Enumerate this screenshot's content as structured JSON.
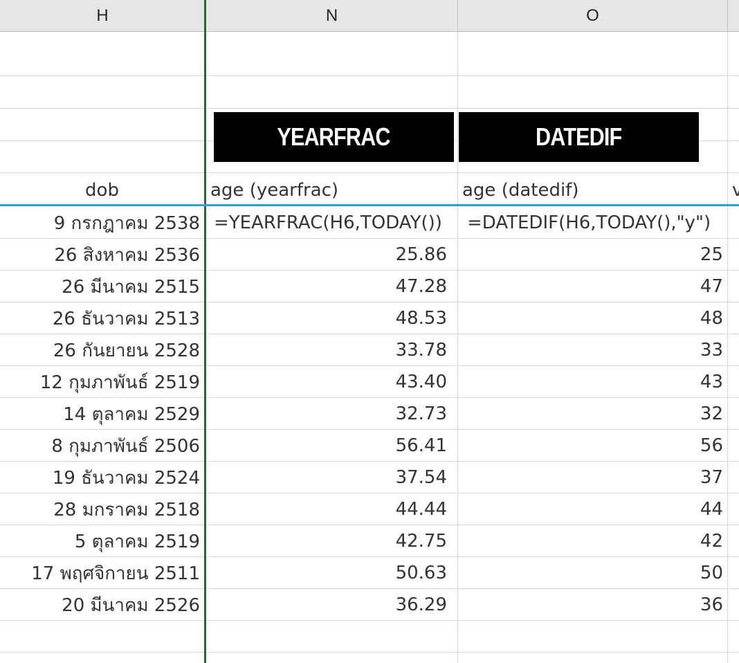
{
  "columns": {
    "h": "H",
    "n": "N",
    "o": "O"
  },
  "banners": {
    "yearfrac": "YEARFRAC",
    "datedif": "DATEDIF"
  },
  "headers": {
    "dob": "dob",
    "yearfrac": "age (yearfrac)",
    "datedif": "age (datedif)",
    "next_col_partial": "v"
  },
  "formulas": {
    "dob": "9 กรกฎาคม 2538",
    "yearfrac": "=YEARFRAC(H6,TODAY())",
    "datedif": "=DATEDIF(H6,TODAY(),\"y\")"
  },
  "rows": [
    {
      "dob": "26 สิงหาคม 2536",
      "yearfrac": "25.86",
      "datedif": "25"
    },
    {
      "dob": "26 มีนาคม 2515",
      "yearfrac": "47.28",
      "datedif": "47"
    },
    {
      "dob": "26 ธันวาคม 2513",
      "yearfrac": "48.53",
      "datedif": "48"
    },
    {
      "dob": "26 กันยายน 2528",
      "yearfrac": "33.78",
      "datedif": "33"
    },
    {
      "dob": "12 กุมภาพันธ์ 2519",
      "yearfrac": "43.40",
      "datedif": "43"
    },
    {
      "dob": "14 ตุลาคม 2529",
      "yearfrac": "32.73",
      "datedif": "32"
    },
    {
      "dob": "8 กุมภาพันธ์ 2506",
      "yearfrac": "56.41",
      "datedif": "56"
    },
    {
      "dob": "19 ธันวาคม 2524",
      "yearfrac": "37.54",
      "datedif": "37"
    },
    {
      "dob": "28 มกราคม 2518",
      "yearfrac": "44.44",
      "datedif": "44"
    },
    {
      "dob": "5 ตุลาคม 2519",
      "yearfrac": "42.75",
      "datedif": "42"
    },
    {
      "dob": "17 พฤศจิกายน 2511",
      "yearfrac": "50.63",
      "datedif": "50"
    },
    {
      "dob": "20 มีนาคม 2526",
      "yearfrac": "36.29",
      "datedif": "36"
    }
  ]
}
